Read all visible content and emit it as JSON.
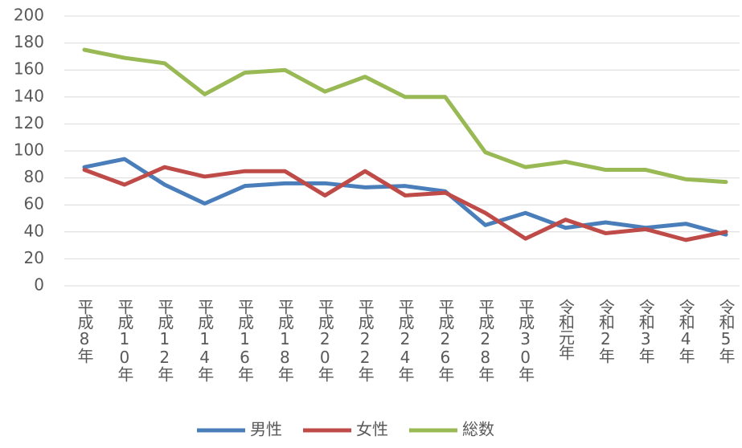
{
  "chart_data": {
    "type": "line",
    "categories": [
      "平成8年",
      "平成10年",
      "平成12年",
      "平成14年",
      "平成16年",
      "平成18年",
      "平成20年",
      "平成22年",
      "平成24年",
      "平成26年",
      "平成28年",
      "平成30年",
      "令和元年",
      "令和2年",
      "令和3年",
      "令和4年",
      "令和5年"
    ],
    "series": [
      {
        "name": "男性",
        "color": "#4a7ebb",
        "values": [
          88,
          94,
          75,
          61,
          74,
          76,
          76,
          73,
          74,
          70,
          45,
          54,
          43,
          47,
          43,
          46,
          38
        ]
      },
      {
        "name": "女性",
        "color": "#be4b48",
        "values": [
          86,
          75,
          88,
          81,
          85,
          85,
          67,
          85,
          67,
          69,
          54,
          35,
          49,
          39,
          42,
          34,
          40
        ]
      },
      {
        "name": "総数",
        "color": "#98b954",
        "values": [
          175,
          169,
          165,
          142,
          158,
          160,
          144,
          155,
          140,
          140,
          99,
          88,
          92,
          86,
          86,
          79,
          77
        ]
      }
    ],
    "ylim": [
      0,
      200
    ],
    "yticks": [
      0,
      20,
      40,
      60,
      80,
      100,
      120,
      140,
      160,
      180,
      200
    ],
    "grid": true,
    "legend": "bottom"
  }
}
